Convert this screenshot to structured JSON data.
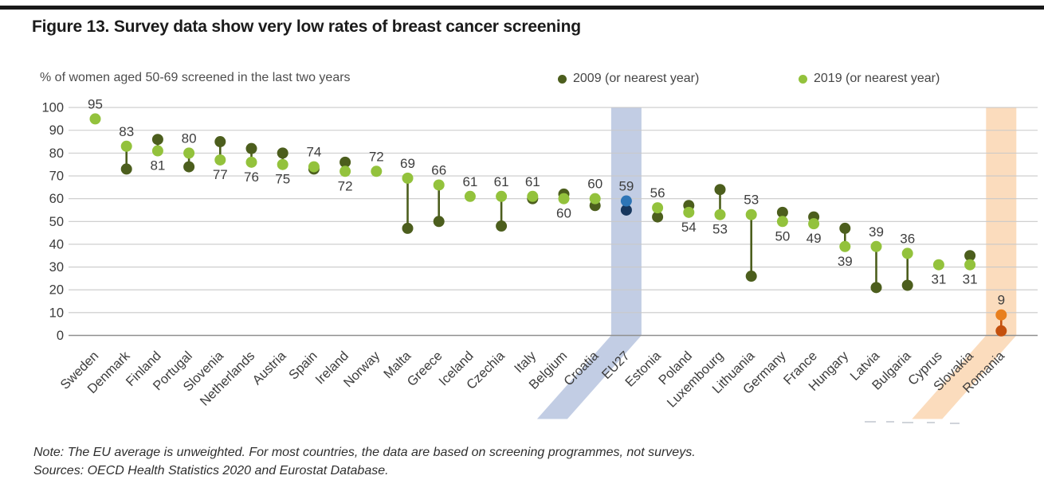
{
  "figure": {
    "title": "Figure 13. Survey data show very low rates of breast cancer screening",
    "note": "Note: The EU average is unweighted. For most countries, the data are based on screening programmes, not surveys.",
    "sources": "Sources: OECD Health Statistics 2020 and Eurostat Database."
  },
  "chart_data": {
    "type": "scatter",
    "subtype": "dumbbell-dot-plot",
    "title": "% of women aged 50-69 screened in the last two years",
    "xlabel": "",
    "ylabel": "% of women aged 50-69 screened in the last two years",
    "ylim": [
      0,
      100
    ],
    "ytick_step": 10,
    "yticks": [
      0,
      10,
      20,
      30,
      40,
      50,
      60,
      70,
      80,
      90,
      100
    ],
    "grid": {
      "color": "#c9c9c9",
      "zero_color": "#8f8f8f",
      "on": true
    },
    "legend_position": "top-right",
    "series": [
      {
        "name": "2009 (or nearest year)",
        "color": "#4c5e1d"
      },
      {
        "name": "2019 (or nearest year)",
        "color": "#93c23c"
      }
    ],
    "value_labels_refer_to": "2019 (or nearest year)",
    "countries": [
      {
        "name": "Sweden",
        "v2009": null,
        "v2019": 95,
        "label_pos": "above"
      },
      {
        "name": "Denmark",
        "v2009": 73,
        "v2019": 83,
        "label_pos": "above"
      },
      {
        "name": "Finland",
        "v2009": 86,
        "v2019": 81,
        "label_pos": "below"
      },
      {
        "name": "Portugal",
        "v2009": 74,
        "v2019": 80,
        "label_pos": "above"
      },
      {
        "name": "Slovenia",
        "v2009": 85,
        "v2019": 77,
        "label_pos": "below"
      },
      {
        "name": "Netherlands",
        "v2009": 82,
        "v2019": 76,
        "label_pos": "below"
      },
      {
        "name": "Austria",
        "v2009": 80,
        "v2019": 75,
        "label_pos": "below"
      },
      {
        "name": "Spain",
        "v2009": 73,
        "v2019": 74,
        "label_pos": "above"
      },
      {
        "name": "Ireland",
        "v2009": 76,
        "v2019": 72,
        "label_pos": "below"
      },
      {
        "name": "Norway",
        "v2009": null,
        "v2019": 72,
        "label_pos": "above"
      },
      {
        "name": "Malta",
        "v2009": 47,
        "v2019": 69,
        "label_pos": "above"
      },
      {
        "name": "Greece",
        "v2009": 50,
        "v2019": 66,
        "label_pos": "above"
      },
      {
        "name": "Iceland",
        "v2009": null,
        "v2019": 61,
        "label_pos": "above"
      },
      {
        "name": "Czechia",
        "v2009": 48,
        "v2019": 61,
        "label_pos": "above"
      },
      {
        "name": "Italy",
        "v2009": 60,
        "v2019": 61,
        "label_pos": "above"
      },
      {
        "name": "Belgium",
        "v2009": 62,
        "v2019": 60,
        "label_pos": "below"
      },
      {
        "name": "Croatia",
        "v2009": 57,
        "v2019": 60,
        "label_pos": "above"
      },
      {
        "name": "EU27",
        "v2009": 55,
        "v2019": 59,
        "label_pos": "above"
      },
      {
        "name": "Estonia",
        "v2009": 52,
        "v2019": 56,
        "label_pos": "above"
      },
      {
        "name": "Poland",
        "v2009": 57,
        "v2019": 54,
        "label_pos": "below"
      },
      {
        "name": "Luxembourg",
        "v2009": 64,
        "v2019": 53,
        "label_pos": "below"
      },
      {
        "name": "Lithuania",
        "v2009": 26,
        "v2019": 53,
        "label_pos": "above"
      },
      {
        "name": "Germany",
        "v2009": 54,
        "v2019": 50,
        "label_pos": "below"
      },
      {
        "name": "France",
        "v2009": 52,
        "v2019": 49,
        "label_pos": "below"
      },
      {
        "name": "Hungary",
        "v2009": 47,
        "v2019": 39,
        "label_pos": "below"
      },
      {
        "name": "Latvia",
        "v2009": 21,
        "v2019": 39,
        "label_pos": "above"
      },
      {
        "name": "Bulgaria",
        "v2009": 22,
        "v2019": 36,
        "label_pos": "above"
      },
      {
        "name": "Cyprus",
        "v2009": null,
        "v2019": 31,
        "label_pos": "below"
      },
      {
        "name": "Slovakia",
        "v2009": 35,
        "v2019": 31,
        "label_pos": "below"
      },
      {
        "name": "Romania",
        "v2009": 2,
        "v2019": 9,
        "label_pos": "above"
      }
    ],
    "highlights": {
      "EU27": {
        "band": "#c2cde4",
        "c2009": "#17375e",
        "c2019": "#2e75b6"
      },
      "Romania": {
        "band": "#fbdcbd",
        "c2009": "#c4500d",
        "c2019": "#e87f1e"
      }
    }
  }
}
